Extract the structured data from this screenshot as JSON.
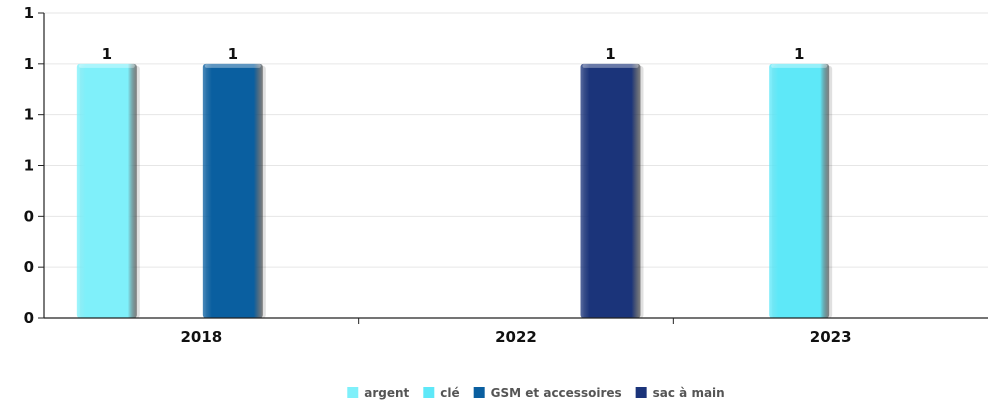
{
  "chart_data": {
    "type": "bar",
    "categories": [
      "2018",
      "2022",
      "2023"
    ],
    "series": [
      {
        "name": "argent",
        "color": "#7ff0fa",
        "values": [
          1,
          0,
          0
        ]
      },
      {
        "name": "clé",
        "color": "#5ee8f8",
        "values": [
          0,
          0,
          1
        ]
      },
      {
        "name": "GSM et accessoires",
        "color": "#0a5fa0",
        "values": [
          1,
          0,
          0
        ]
      },
      {
        "name": "sac à main",
        "color": "#1b347a",
        "values": [
          0,
          1,
          0
        ]
      }
    ],
    "ytick_labels": [
      "0",
      "0",
      "0",
      "1",
      "1",
      "1",
      "1"
    ],
    "ylim": [
      0,
      1.2
    ],
    "data_labels": [
      "1",
      "1",
      "1",
      "1"
    ],
    "title": "",
    "xlabel": "",
    "ylabel": "",
    "grid": true,
    "legend_position": "bottom"
  }
}
